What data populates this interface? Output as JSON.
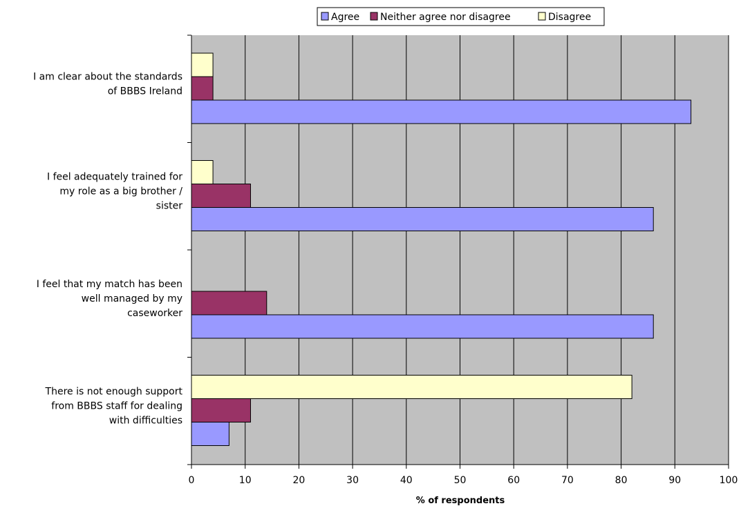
{
  "chart_data": {
    "type": "bar",
    "orientation": "horizontal",
    "title": "",
    "xlabel": "% of respondents",
    "ylabel": "",
    "xlim": [
      0,
      100
    ],
    "xticks": [
      0,
      10,
      20,
      30,
      40,
      50,
      60,
      70,
      80,
      90,
      100
    ],
    "grid": "vertical",
    "legend_position": "top",
    "categories": [
      [
        "I am clear about the standards",
        "of BBBS Ireland"
      ],
      [
        "I feel adequately trained for",
        "my role as a big brother /",
        "sister"
      ],
      [
        "I feel that my match has been",
        "well managed by my",
        "caseworker"
      ],
      [
        "There is not enough support",
        "from BBBS staff for dealing",
        "with difficulties"
      ]
    ],
    "series": [
      {
        "name": "Agree",
        "color": "#9999ff",
        "values": [
          93,
          86,
          86,
          7
        ]
      },
      {
        "name": "Neither agree nor disagree",
        "color": "#993366",
        "values": [
          4,
          11,
          14,
          11
        ]
      },
      {
        "name": "Disagree",
        "color": "#ffffcc",
        "values": [
          4,
          4,
          0,
          82
        ]
      }
    ],
    "plot_background": "#c0c0c0"
  }
}
